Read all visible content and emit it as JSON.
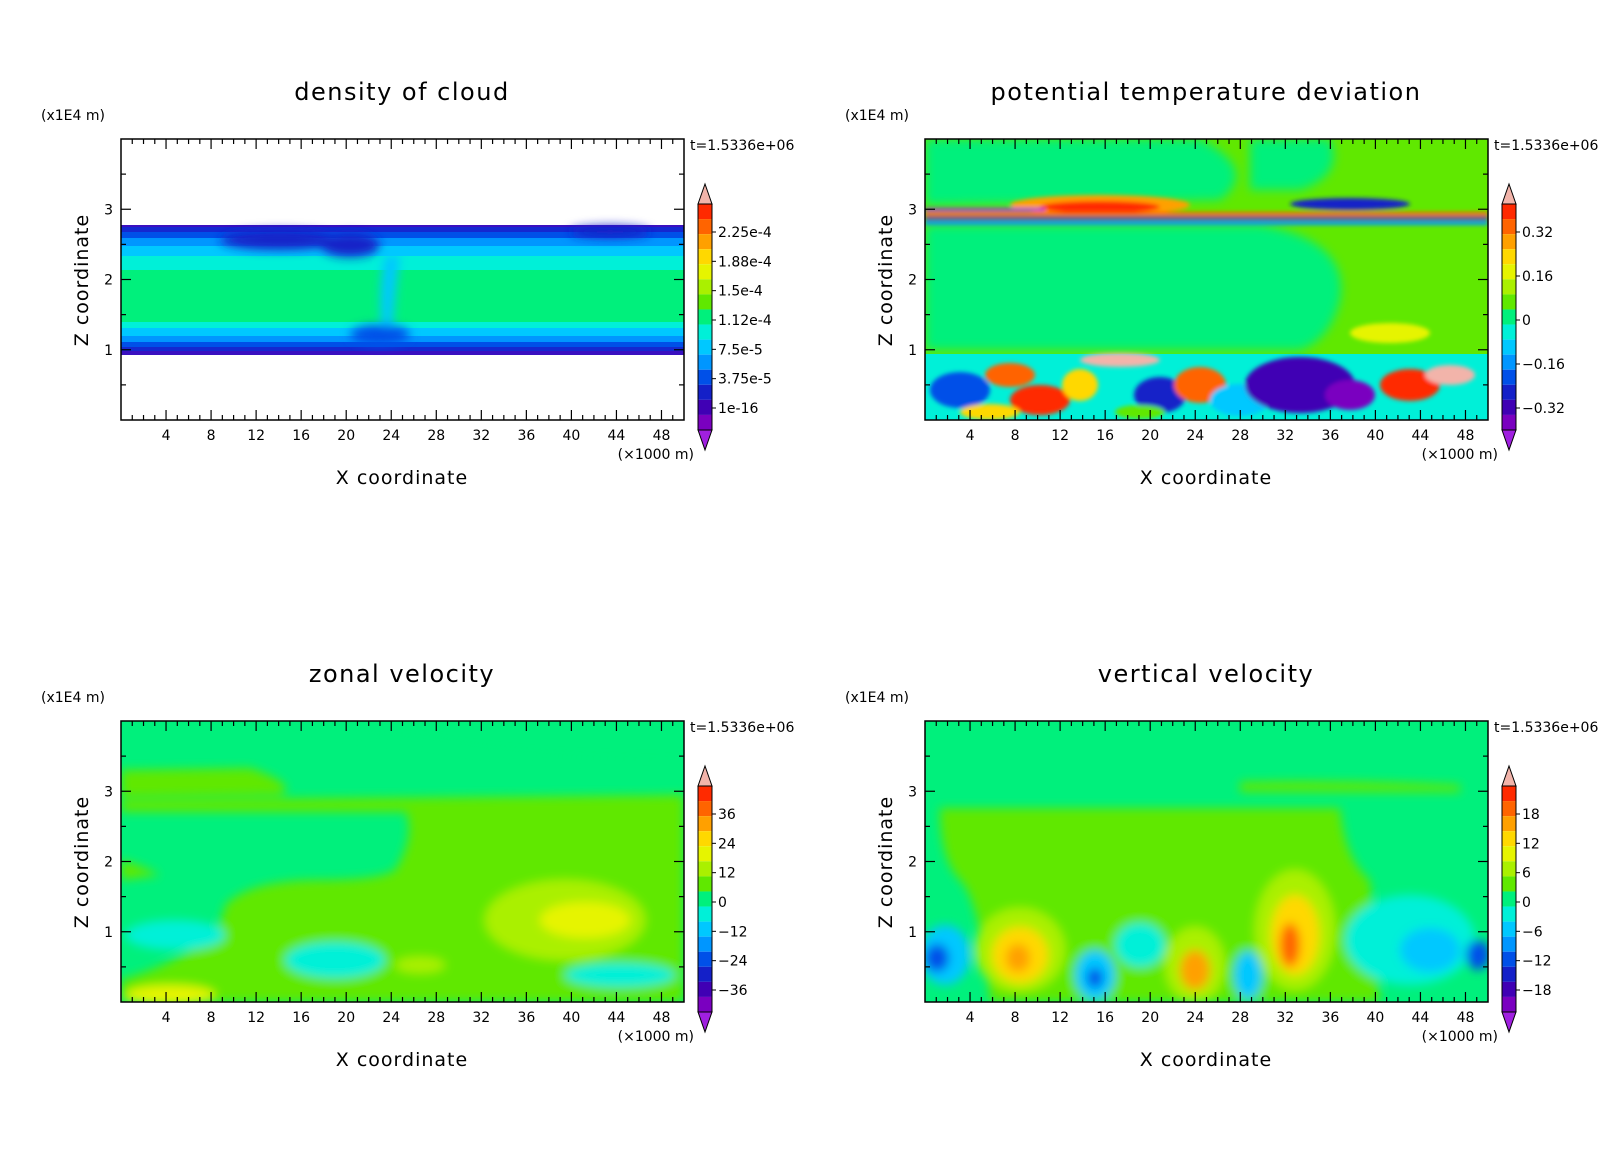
{
  "chart_data": [
    {
      "type": "heatmap",
      "title": "density of cloud",
      "xlabel": "X coordinate",
      "ylabel": "Z coordinate",
      "x_unit": "(×1000 m)",
      "y_unit": "(x1E4 m)",
      "time_label": "t=1.5336e+06",
      "xlim": [
        0,
        50
      ],
      "ylim": [
        0,
        4
      ],
      "xticks": [
        4,
        8,
        12,
        16,
        20,
        24,
        28,
        32,
        36,
        40,
        44,
        48
      ],
      "yticks": [
        1,
        2,
        3
      ],
      "colorbar": {
        "labels": [
          "2.25e-4",
          "1.88e-4",
          "1.5e-4",
          "1.12e-4",
          "7.5e-5",
          "3.75e-5",
          "1e-16"
        ],
        "values": [
          0.000225,
          0.000188,
          0.00015,
          0.000112,
          7.5e-05,
          3.75e-05,
          1e-16
        ]
      }
    },
    {
      "type": "heatmap",
      "title": "potential temperature deviation",
      "xlabel": "X coordinate",
      "ylabel": "Z coordinate",
      "x_unit": "(×1000 m)",
      "y_unit": "(x1E4 m)",
      "time_label": "t=1.5336e+06",
      "xlim": [
        0,
        50
      ],
      "ylim": [
        0,
        4
      ],
      "xticks": [
        4,
        8,
        12,
        16,
        20,
        24,
        28,
        32,
        36,
        40,
        44,
        48
      ],
      "yticks": [
        1,
        2,
        3
      ],
      "colorbar": {
        "labels": [
          "0.32",
          "0.16",
          "0",
          "−0.16",
          "−0.32"
        ],
        "values": [
          0.32,
          0.16,
          0,
          -0.16,
          -0.32
        ]
      }
    },
    {
      "type": "heatmap",
      "title": "zonal velocity",
      "xlabel": "X coordinate",
      "ylabel": "Z coordinate",
      "x_unit": "(×1000 m)",
      "y_unit": "(x1E4 m)",
      "time_label": "t=1.5336e+06",
      "xlim": [
        0,
        50
      ],
      "ylim": [
        0,
        4
      ],
      "xticks": [
        4,
        8,
        12,
        16,
        20,
        24,
        28,
        32,
        36,
        40,
        44,
        48
      ],
      "yticks": [
        1,
        2,
        3
      ],
      "colorbar": {
        "labels": [
          "36",
          "24",
          "12",
          "0",
          "−12",
          "−24",
          "−36"
        ],
        "values": [
          36,
          24,
          12,
          0,
          -12,
          -24,
          -36
        ]
      }
    },
    {
      "type": "heatmap",
      "title": "vertical velocity",
      "xlabel": "X coordinate",
      "ylabel": "Z coordinate",
      "x_unit": "(×1000 m)",
      "y_unit": "(x1E4 m)",
      "time_label": "t=1.5336e+06",
      "xlim": [
        0,
        50
      ],
      "ylim": [
        0,
        4
      ],
      "xticks": [
        4,
        8,
        12,
        16,
        20,
        24,
        28,
        32,
        36,
        40,
        44,
        48
      ],
      "yticks": [
        1,
        2,
        3
      ],
      "colorbar": {
        "labels": [
          "18",
          "12",
          "6",
          "0",
          "−6",
          "−12",
          "−18"
        ],
        "values": [
          18,
          12,
          6,
          0,
          -6,
          -12,
          -18
        ]
      }
    }
  ],
  "colors": {
    "scale": [
      "#f2b4aa",
      "#ff2a00",
      "#ff6400",
      "#ffa000",
      "#ffd800",
      "#e6f400",
      "#aaf000",
      "#60e800",
      "#00f07c",
      "#00f0d8",
      "#00c8ff",
      "#0096ff",
      "#0050e8",
      "#1420c8",
      "#4000b4",
      "#7a00c0",
      "#a020e0"
    ],
    "background": "#ffffff"
  }
}
